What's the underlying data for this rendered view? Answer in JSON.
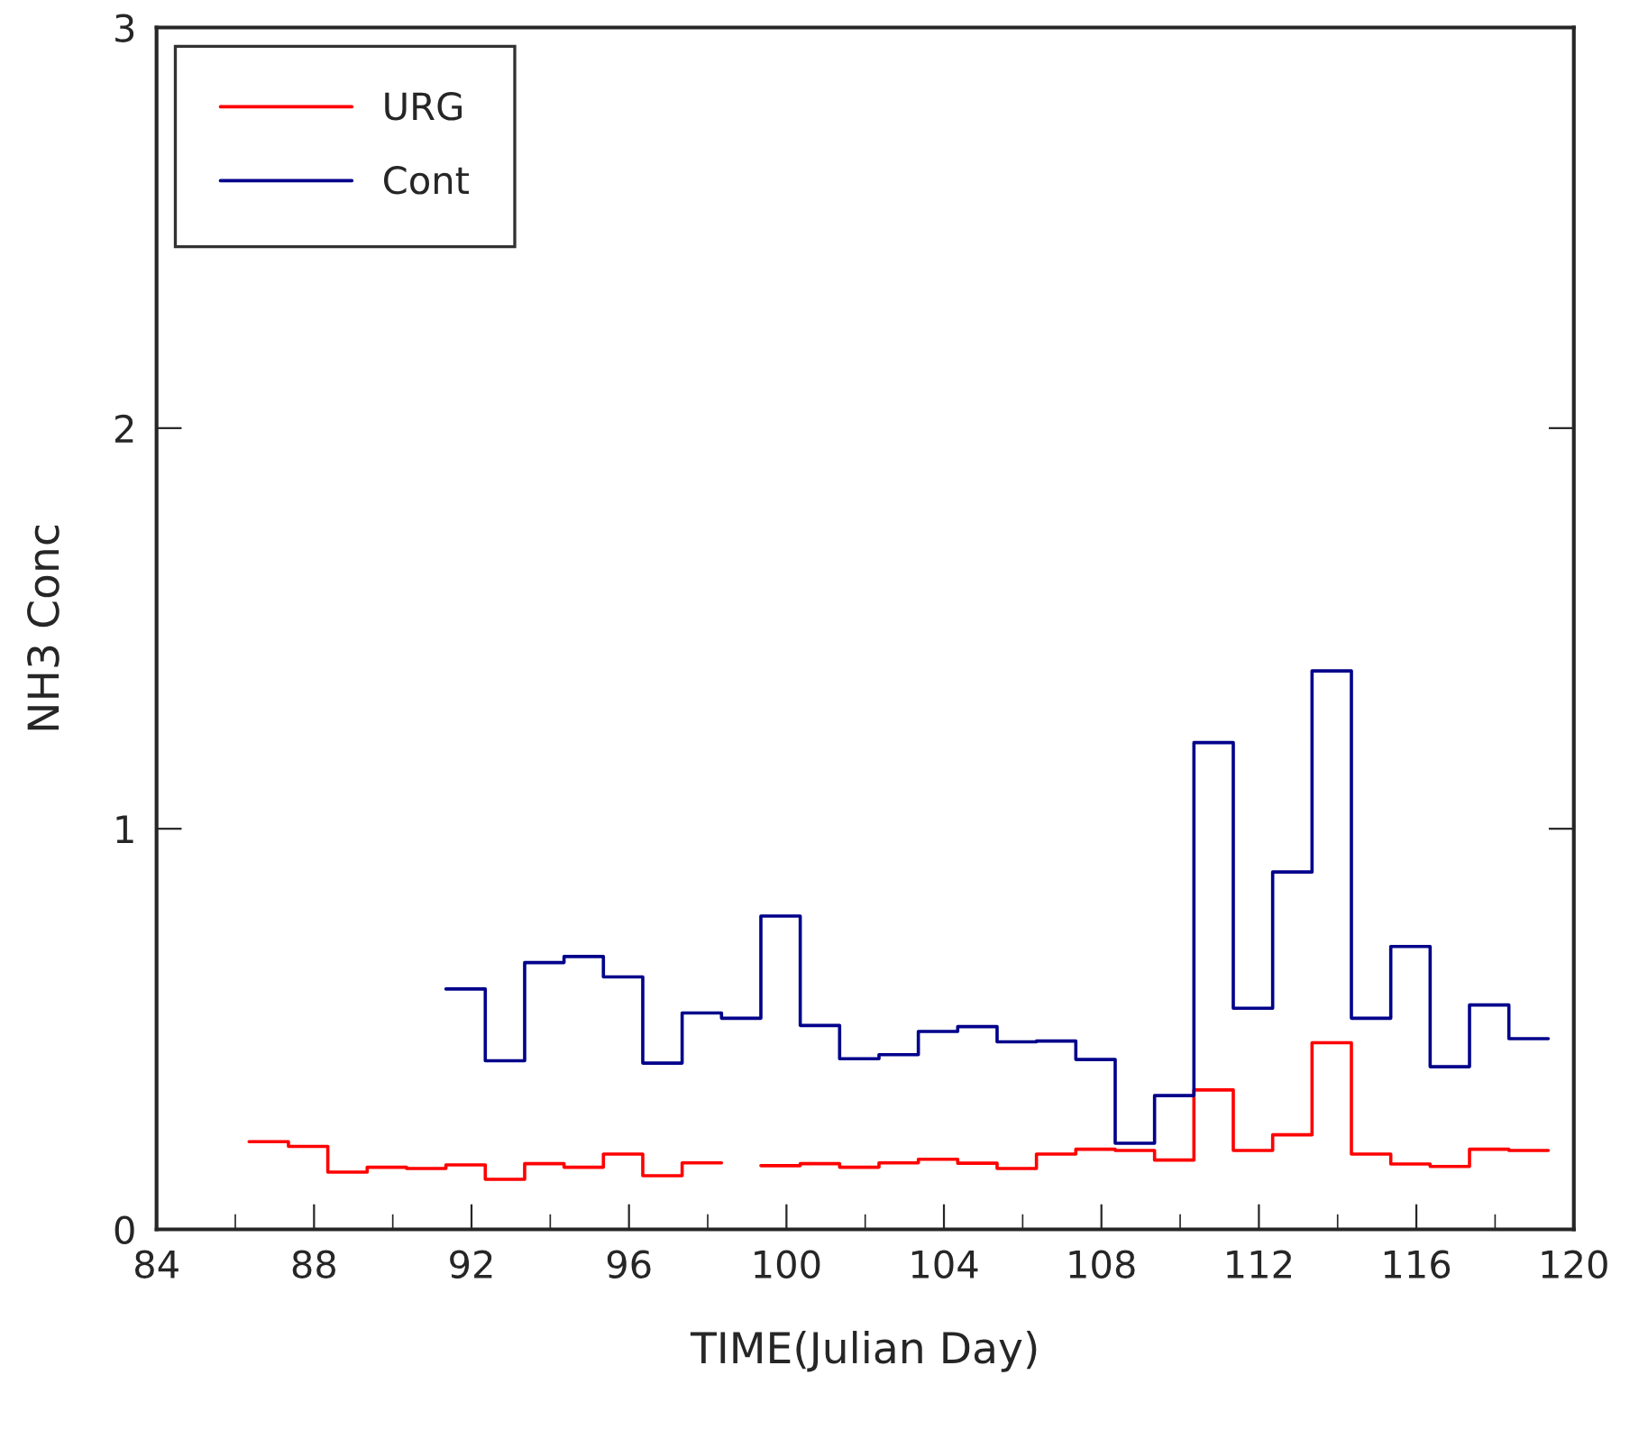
{
  "chart_data": {
    "type": "step",
    "xlabel": "TIME(Julian Day)",
    "ylabel": "NH3 Conc",
    "xlim": [
      84,
      120
    ],
    "xticks": [
      84,
      88,
      92,
      96,
      100,
      104,
      108,
      112,
      116,
      120
    ],
    "ylim": [
      0,
      3
    ],
    "yticks": [
      0,
      1,
      2,
      3
    ],
    "grid": false,
    "legend": "top left",
    "series": [
      {
        "name": "URG",
        "color": "#ff0000",
        "x": [
          86.35,
          87.35,
          88.35,
          89.35,
          90.35,
          91.35,
          92.35,
          93.35,
          94.35,
          95.35,
          96.35,
          97.35,
          98.35,
          99.35,
          100.35,
          101.35,
          102.35,
          103.35,
          104.35,
          105.35,
          106.35,
          107.35,
          108.35,
          109.35,
          110.35,
          111.35,
          112.35,
          113.35,
          114.35,
          115.35,
          116.35,
          117.35,
          118.35,
          119.35
        ],
        "values": [
          0.219,
          0.207,
          0.143,
          0.155,
          0.152,
          0.161,
          0.125,
          0.164,
          0.155,
          0.188,
          0.134,
          0.166,
          null,
          0.159,
          0.164,
          0.155,
          0.166,
          0.175,
          0.165,
          0.152,
          0.188,
          0.2,
          0.197,
          0.173,
          0.348,
          0.197,
          0.236,
          0.466,
          0.188,
          0.163,
          0.157,
          0.2,
          0.197,
          0.197
        ]
      },
      {
        "name": "Cont",
        "color": "#00008b",
        "x": [
          91.35,
          92.35,
          93.35,
          94.35,
          95.35,
          96.35,
          97.35,
          98.35,
          99.35,
          100.35,
          101.35,
          102.35,
          103.35,
          104.35,
          105.35,
          106.35,
          107.35,
          108.35,
          109.35,
          110.35,
          111.35,
          112.35,
          113.35,
          114.35,
          115.35,
          116.35,
          117.35,
          118.35,
          119.35
        ],
        "values": [
          0.6,
          0.421,
          0.666,
          0.681,
          0.63,
          0.415,
          0.54,
          0.527,
          0.782,
          0.509,
          0.426,
          0.436,
          0.494,
          0.506,
          0.468,
          0.47,
          0.424,
          0.215,
          0.334,
          1.215,
          0.552,
          0.892,
          1.394,
          0.527,
          0.706,
          0.406,
          0.56,
          0.476,
          0.476
        ]
      }
    ]
  }
}
